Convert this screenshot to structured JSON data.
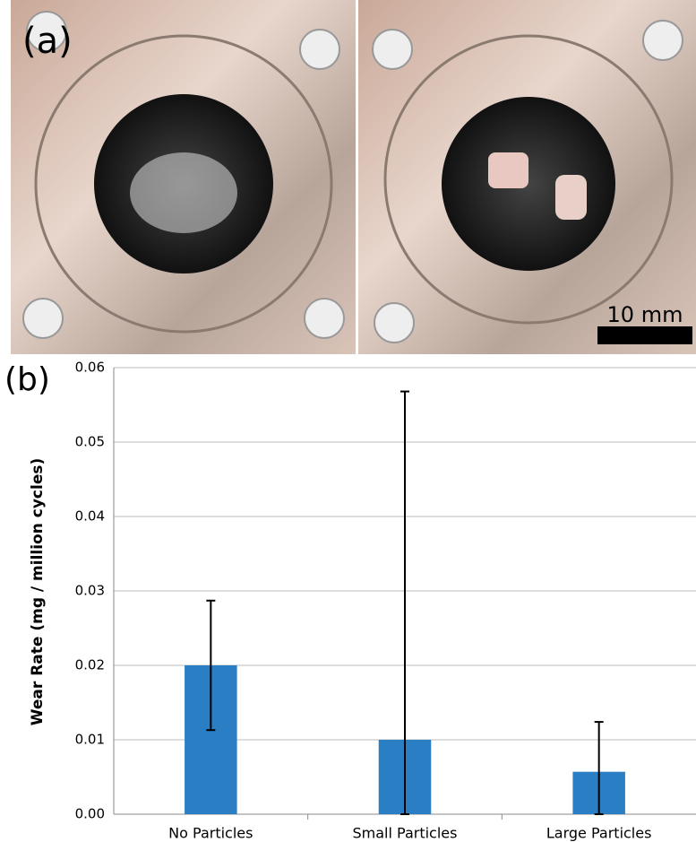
{
  "photo": {
    "label": "(a)",
    "scale_bar": "10 mm"
  },
  "chart_data": {
    "type": "bar",
    "panel_label": "(b)",
    "y_label": "Wear Rate (mg / million cycles)",
    "categories": [
      "No Particles",
      "Small Particles",
      "Large Particles"
    ],
    "values": [
      0.02,
      0.01,
      0.0057
    ],
    "errors": [
      0.0087,
      0.0468,
      0.0067
    ],
    "color": "#2a7fc4",
    "ylim": [
      0,
      0.06
    ],
    "yticks": [
      {
        "value": 0,
        "label": "0.00"
      },
      0.01,
      0.02,
      0.03,
      0.04,
      0.05,
      0.06
    ],
    "grid": true
  }
}
